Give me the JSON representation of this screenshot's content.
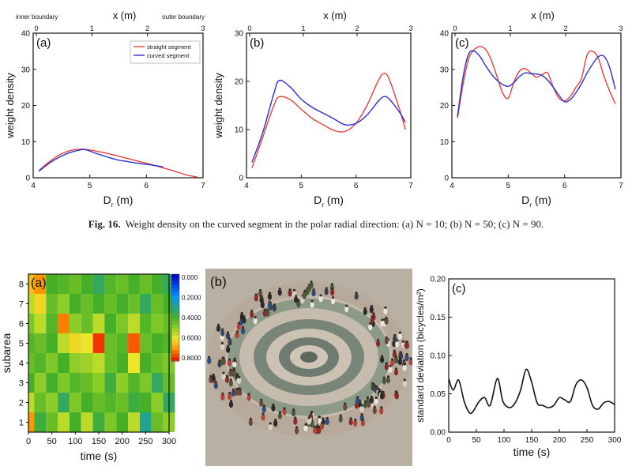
{
  "colors": {
    "red": "#e8413c",
    "blue": "#2b2fd0",
    "axis": "#111111"
  },
  "caption": {
    "label": "Fig. 16.",
    "text": "Weight density on the curved segment in the polar radial direction: (a) N = 10; (b) N = 50; (c) N = 90."
  },
  "chart_data": [
    {
      "id": "fig16a",
      "type": "line",
      "panel_label": "(a)",
      "xlabel": "D_r (m)",
      "top_xlabel": "x (m)",
      "ylabel": "weight density",
      "xlim": [
        4,
        7
      ],
      "ylim": [
        0,
        40
      ],
      "xticks": [
        "4",
        "5",
        "6",
        "7"
      ],
      "yticks": [
        "0",
        "10",
        "20",
        "30",
        "40"
      ],
      "top_ticks": [
        "0",
        "1",
        "2",
        "3"
      ],
      "top_annotations": [
        "inner boundary",
        "outer boundary"
      ],
      "legend": [
        "straight segment",
        "curved segment"
      ],
      "series": [
        {
          "name": "straight segment",
          "color": "red",
          "x": [
            4.1,
            4.3,
            4.5,
            4.7,
            4.9,
            5.1,
            5.3,
            5.5,
            5.7,
            5.9,
            6.1,
            6.3,
            6.5,
            6.7,
            6.9
          ],
          "values": [
            2,
            4.6,
            6.6,
            7.7,
            7.9,
            7.4,
            6.8,
            6,
            5.2,
            4.4,
            3.6,
            2.7,
            1.8,
            0.8,
            0.2
          ]
        },
        {
          "name": "curved segment",
          "color": "blue",
          "x": [
            4.1,
            4.3,
            4.5,
            4.7,
            4.9,
            5.1,
            5.3,
            5.5,
            5.7,
            5.9,
            6.1,
            6.3
          ],
          "values": [
            1.8,
            4.2,
            6,
            7.2,
            7.8,
            6.8,
            5.8,
            4.9,
            4.4,
            3.9,
            3.5,
            3
          ]
        }
      ]
    },
    {
      "id": "fig16b",
      "type": "line",
      "panel_label": "(b)",
      "xlabel": "D_r (m)",
      "top_xlabel": "x (m)",
      "ylabel": "weight density",
      "xlim": [
        4,
        7
      ],
      "ylim": [
        0,
        30
      ],
      "xticks": [
        "4",
        "5",
        "6",
        "7"
      ],
      "yticks": [
        "0",
        "10",
        "20",
        "30"
      ],
      "top_ticks": [
        "0",
        "1",
        "2",
        "3"
      ],
      "series": [
        {
          "name": "straight segment",
          "color": "red",
          "x": [
            4.1,
            4.3,
            4.5,
            4.6,
            4.8,
            5,
            5.2,
            5.4,
            5.6,
            5.8,
            6,
            6.2,
            6.4,
            6.5,
            6.6,
            6.8,
            6.9
          ],
          "values": [
            2,
            8.5,
            15,
            16.8,
            16.2,
            14.2,
            12.3,
            11,
            9.8,
            9.6,
            11.3,
            15,
            20,
            21.6,
            20.6,
            14,
            10
          ]
        },
        {
          "name": "curved segment",
          "color": "blue",
          "x": [
            4.1,
            4.3,
            4.5,
            4.6,
            4.8,
            5,
            5.2,
            5.4,
            5.6,
            5.8,
            6,
            6.2,
            6.4,
            6.5,
            6.6,
            6.8,
            6.9
          ],
          "values": [
            3.2,
            9.5,
            17.5,
            20.2,
            18.8,
            16.3,
            14.6,
            13.4,
            12.2,
            11,
            11.3,
            13,
            15.8,
            16.8,
            16.4,
            13.5,
            11.5
          ]
        }
      ]
    },
    {
      "id": "fig16c",
      "type": "line",
      "panel_label": "(c)",
      "xlabel": "D_r (m)",
      "top_xlabel": "x (m)",
      "ylabel": "",
      "xlim": [
        4,
        7
      ],
      "ylim": [
        0,
        40
      ],
      "xticks": [
        "4",
        "5",
        "6",
        "7"
      ],
      "yticks": [
        "0",
        "10",
        "20",
        "30",
        "40"
      ],
      "top_ticks": [
        "0",
        "1",
        "2",
        "3"
      ],
      "series": [
        {
          "name": "straight segment",
          "color": "red",
          "x": [
            4.1,
            4.2,
            4.3,
            4.4,
            4.5,
            4.6,
            4.7,
            4.8,
            4.9,
            5,
            5.1,
            5.2,
            5.3,
            5.4,
            5.5,
            5.6,
            5.7,
            5.8,
            5.9,
            6,
            6.1,
            6.2,
            6.3,
            6.4,
            6.5,
            6.6,
            6.7,
            6.8,
            6.9
          ],
          "values": [
            16.5,
            26,
            33,
            35.5,
            36.3,
            35.5,
            32.5,
            28,
            23.5,
            22,
            26.5,
            29.5,
            30.2,
            29,
            27.8,
            28.5,
            29,
            25,
            22,
            21.3,
            22.5,
            25,
            27.5,
            34,
            35,
            33,
            28,
            24,
            20.5
          ]
        },
        {
          "name": "curved segment",
          "color": "blue",
          "x": [
            4.1,
            4.2,
            4.3,
            4.4,
            4.5,
            4.6,
            4.7,
            4.8,
            4.9,
            5,
            5.1,
            5.2,
            5.3,
            5.4,
            5.5,
            5.6,
            5.7,
            5.8,
            5.9,
            6,
            6.1,
            6.2,
            6.3,
            6.4,
            6.5,
            6.6,
            6.7,
            6.8,
            6.9
          ],
          "values": [
            17,
            28,
            34.3,
            35,
            33.5,
            31,
            28.7,
            27,
            25.8,
            25.3,
            26.3,
            28,
            29,
            28.8,
            28.7,
            28.3,
            27,
            25,
            22.8,
            21,
            21.6,
            23.5,
            26,
            29,
            31.5,
            33.5,
            33.6,
            30.5,
            24.5
          ]
        }
      ]
    },
    {
      "id": "fig17a",
      "type": "heatmap",
      "panel_label": "(a)",
      "xlabel": "time (s)",
      "ylabel": "subarea",
      "xlim": [
        0,
        300
      ],
      "ylim": [
        0.5,
        8.5
      ],
      "xticks": [
        "0",
        "50",
        "100",
        "150",
        "200",
        "250",
        "300"
      ],
      "yticks": [
        "1",
        "2",
        "3",
        "4",
        "5",
        "6",
        "7",
        "8"
      ],
      "colorbar_ticks": [
        "0.000",
        "0.2000",
        "0.4000",
        "0.6000",
        "0.8000"
      ],
      "x_times": [
        0,
        25,
        50,
        75,
        100,
        125,
        150,
        175,
        200,
        225,
        250,
        275,
        300
      ],
      "rows": [
        [
          0.7,
          0.38,
          0.45,
          0.55,
          0.4,
          0.55,
          0.38,
          0.48,
          0.4,
          0.55,
          0.3,
          0.45,
          0.5
        ],
        [
          0.55,
          0.45,
          0.5,
          0.35,
          0.48,
          0.4,
          0.45,
          0.42,
          0.45,
          0.38,
          0.4,
          0.5,
          0.35
        ],
        [
          0.4,
          0.5,
          0.4,
          0.48,
          0.42,
          0.45,
          0.5,
          0.38,
          0.5,
          0.42,
          0.48,
          0.35,
          0.45
        ],
        [
          0.45,
          0.42,
          0.48,
          0.4,
          0.5,
          0.52,
          0.55,
          0.45,
          0.4,
          0.6,
          0.4,
          0.45,
          0.48
        ],
        [
          0.42,
          0.45,
          0.4,
          0.55,
          0.62,
          0.6,
          0.78,
          0.45,
          0.42,
          0.75,
          0.45,
          0.4,
          0.42
        ],
        [
          0.48,
          0.55,
          0.42,
          0.72,
          0.5,
          0.45,
          0.55,
          0.4,
          0.48,
          0.55,
          0.42,
          0.48,
          0.45
        ],
        [
          0.55,
          0.62,
          0.45,
          0.5,
          0.4,
          0.45,
          0.4,
          0.45,
          0.4,
          0.45,
          0.35,
          0.45,
          0.4
        ],
        [
          0.65,
          0.7,
          0.4,
          0.42,
          0.45,
          0.4,
          0.35,
          0.42,
          0.45,
          0.4,
          0.45,
          0.4,
          0.35
        ]
      ]
    },
    {
      "id": "fig17c",
      "type": "line",
      "panel_label": "(c)",
      "xlabel": "time (s)",
      "ylabel": "standard deviation (bicycles/m²)",
      "xlim": [
        0,
        300
      ],
      "ylim": [
        0,
        0.2
      ],
      "xticks": [
        "0",
        "50",
        "100",
        "150",
        "200",
        "250",
        "300"
      ],
      "yticks": [
        "0.00",
        "0.05",
        "0.10",
        "0.15",
        "0.20"
      ],
      "series": [
        {
          "name": "std",
          "color": "axis",
          "x": [
            0,
            8,
            18,
            28,
            38,
            45,
            55,
            65,
            75,
            88,
            98,
            110,
            120,
            130,
            140,
            150,
            160,
            170,
            180,
            190,
            200,
            210,
            220,
            230,
            240,
            250,
            260,
            270,
            280,
            290,
            300
          ],
          "values": [
            0.07,
            0.055,
            0.068,
            0.04,
            0.025,
            0.028,
            0.04,
            0.045,
            0.035,
            0.07,
            0.04,
            0.032,
            0.038,
            0.055,
            0.082,
            0.065,
            0.038,
            0.035,
            0.032,
            0.035,
            0.045,
            0.042,
            0.04,
            0.062,
            0.068,
            0.058,
            0.035,
            0.03,
            0.038,
            0.04,
            0.036
          ]
        }
      ]
    }
  ],
  "photo": {
    "panel_label": "(b)"
  }
}
